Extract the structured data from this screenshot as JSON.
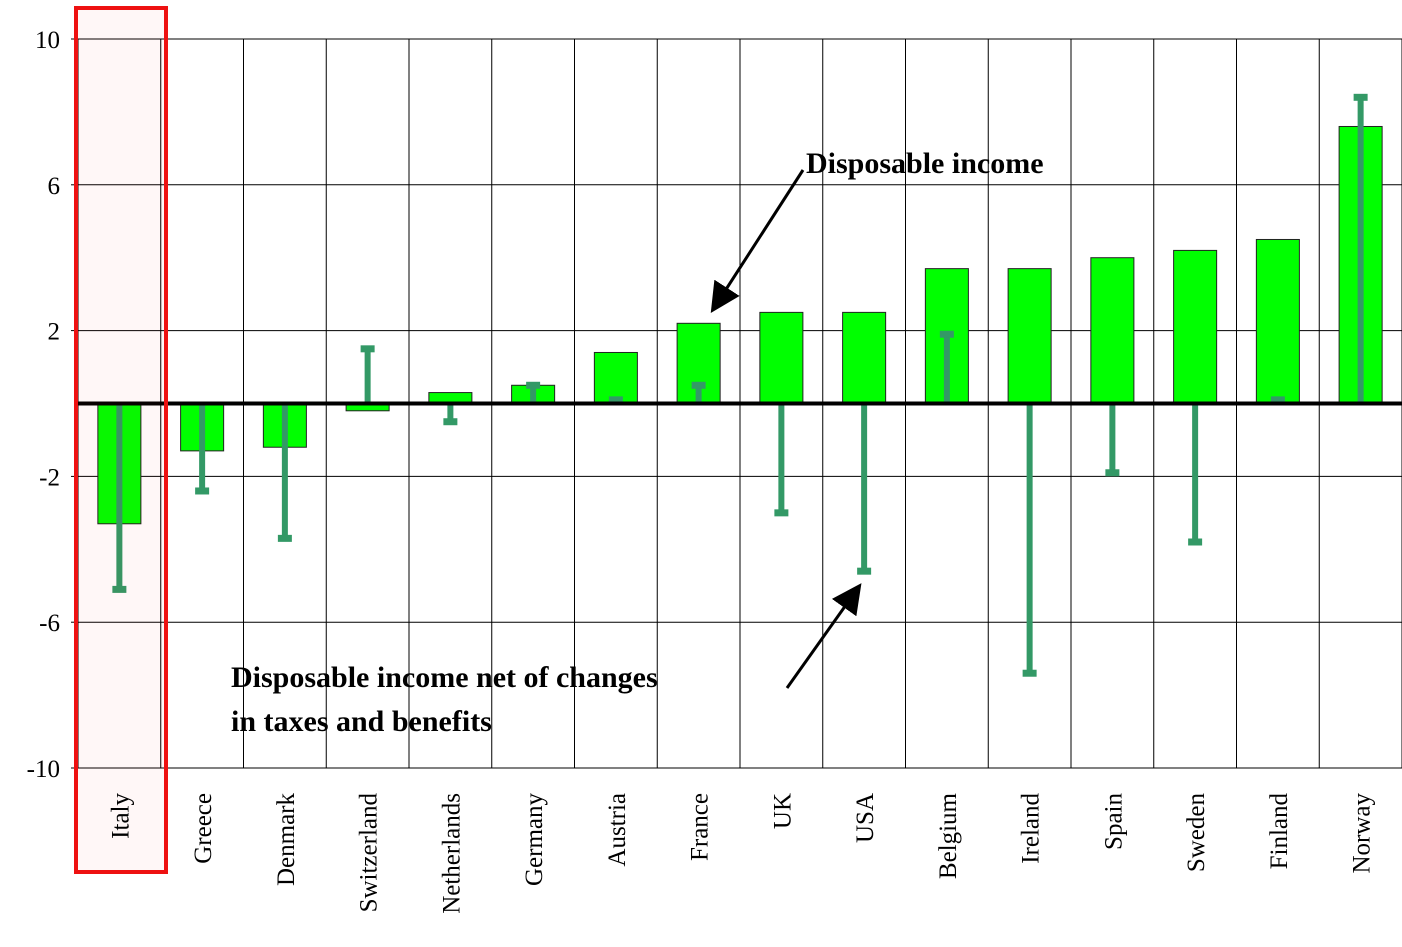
{
  "chart_data": {
    "type": "bar",
    "categories": [
      "Italy",
      "Greece",
      "Denmark",
      "Switzerland",
      "Netherlands",
      "Germany",
      "Austria",
      "France",
      "UK",
      "USA",
      "Belgium",
      "Ireland",
      "Spain",
      "Sweden",
      "Finland",
      "Norway"
    ],
    "series": [
      {
        "type": "bar",
        "color": "#00ff00",
        "values": [
          -3.3,
          -1.3,
          -1.2,
          -0.2,
          0.3,
          0.5,
          1.4,
          2.2,
          2.5,
          2.5,
          3.7,
          3.7,
          4.0,
          4.2,
          4.5,
          7.6
        ]
      },
      {
        "type": "stem",
        "color": "#339966",
        "values": [
          -5.1,
          -2.4,
          -3.7,
          1.5,
          -0.5,
          0.5,
          0.1,
          0.5,
          -3.0,
          -4.6,
          1.9,
          -7.4,
          -1.9,
          -3.8,
          0.1,
          8.4
        ]
      }
    ],
    "ylim": [
      -10,
      10
    ],
    "yticks": [
      -10,
      -6,
      -2,
      2,
      6,
      10
    ],
    "grid": true,
    "annotations": [
      {
        "lines": [
          "Disposable income"
        ]
      },
      {
        "lines": [
          "Disposable income net of changes",
          "in taxes and benefits"
        ]
      }
    ]
  }
}
